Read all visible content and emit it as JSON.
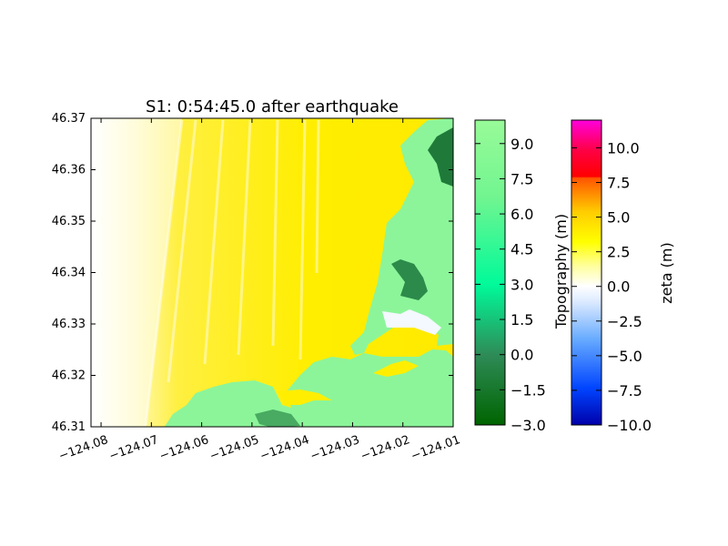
{
  "chart_data": {
    "type": "heatmap",
    "title": "S1: 0:54:45.0 after earthquake",
    "xlabel": "",
    "ylabel": "",
    "xlim": [
      -124.082,
      -124.01
    ],
    "ylim": [
      46.31,
      46.37
    ],
    "x_ticks": [
      -124.08,
      -124.07,
      -124.06,
      -124.05,
      -124.04,
      -124.03,
      -124.02,
      -124.01
    ],
    "x_tick_labels": [
      "−124.08",
      "−124.07",
      "−124.06",
      "−124.05",
      "−124.04",
      "−124.03",
      "−124.02",
      "−124.01"
    ],
    "y_ticks": [
      46.31,
      46.32,
      46.33,
      46.34,
      46.35,
      46.36,
      46.37
    ],
    "y_tick_labels": [
      "46.31",
      "46.32",
      "46.33",
      "46.34",
      "46.35",
      "46.36",
      "46.37"
    ],
    "grid": false,
    "fields": {
      "zeta_color": "#ffee00",
      "land_color": "#8cf59a",
      "dark_land_color": "#1f7a3a",
      "offshore_color": "#ffffff"
    },
    "colorbars": [
      {
        "label": "Topography (m)",
        "range": [
          -3.0,
          10.0
        ],
        "ticks": [
          9.0,
          7.5,
          6.0,
          4.5,
          3.0,
          1.5,
          0.0,
          -1.5,
          -3.0
        ],
        "tick_labels": [
          "9.0",
          "7.5",
          "6.0",
          "4.5",
          "3.0",
          "1.5",
          "0.0",
          "−1.5",
          "−3.0"
        ],
        "colors": [
          "#006400",
          "#2e8b57",
          "#00fa9a",
          "#7fff7f",
          "#98fb98"
        ]
      },
      {
        "label": "zeta (m)",
        "range": [
          -10.0,
          12.0
        ],
        "ticks": [
          10.0,
          7.5,
          5.0,
          2.5,
          0.0,
          -2.5,
          -5.0,
          -7.5,
          -10.0
        ],
        "tick_labels": [
          "10.0",
          "7.5",
          "5.0",
          "2.5",
          "0.0",
          "−2.5",
          "−5.0",
          "−7.5",
          "−10.0"
        ],
        "colors": [
          "#0000aa",
          "#1e5bff",
          "#80b8ff",
          "#ffffff",
          "#ffff00",
          "#ffc800",
          "#ff6600",
          "#ff0033",
          "#ff00cc"
        ]
      }
    ]
  }
}
